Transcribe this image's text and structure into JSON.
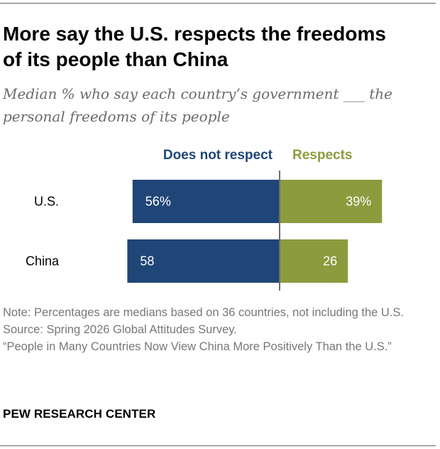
{
  "title": "More say the U.S. respects the freedoms of its people than China",
  "subtitle": "Median % who say each country’s government ___ the personal freedoms of its people",
  "note": "Note: Percentages are medians based on 36 countries, not including the U.S.",
  "source": "Source: Spring 2026 Global Attitudes Survey.",
  "report_title": "“People in Many Countries Now View China More Positively Than the U.S.”",
  "publisher": "PEW RESEARCH CENTER",
  "colors": {
    "not_respect": "#1f4677",
    "respects": "#8c9b3e",
    "divider": "#6e6e6e",
    "label": "#000000"
  },
  "chart_data": {
    "type": "bar",
    "orientation": "horizontal-diverging",
    "categories": [
      "U.S.",
      "China"
    ],
    "series": [
      {
        "name": "Does not respect",
        "values": [
          56,
          58
        ],
        "labels": [
          "56%",
          "58"
        ]
      },
      {
        "name": "Respects",
        "values": [
          39,
          26
        ],
        "labels": [
          "39%",
          "26"
        ]
      }
    ],
    "legend_position": "top",
    "grid": false,
    "xlim": [
      -60,
      60
    ]
  }
}
